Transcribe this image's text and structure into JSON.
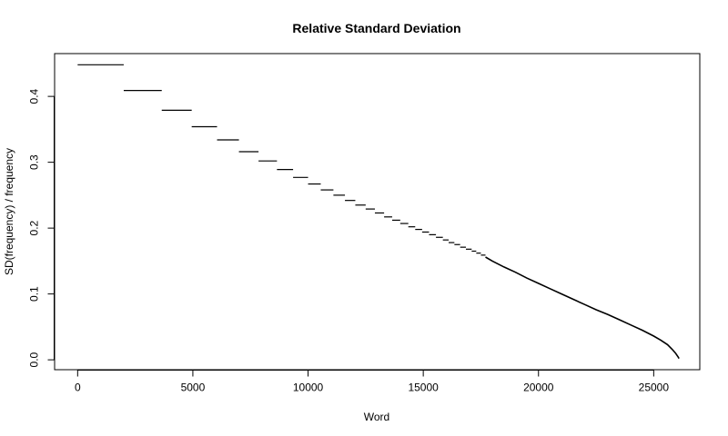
{
  "chart_data": {
    "type": "line",
    "title": "Relative Standard Deviation",
    "xlabel": "Word",
    "ylabel": "SD(frequency) / frequency",
    "xlim": [
      -1000,
      27000
    ],
    "ylim": [
      -0.015,
      0.465
    ],
    "x_ticks": [
      0,
      5000,
      10000,
      15000,
      20000,
      25000
    ],
    "x_tick_labels": [
      "0",
      "5000",
      "10000",
      "15000",
      "20000",
      "25000"
    ],
    "y_ticks": [
      0.0,
      0.1,
      0.2,
      0.3,
      0.4
    ],
    "y_tick_labels": [
      "0.0",
      "0.1",
      "0.2",
      "0.3",
      "0.4"
    ],
    "grid": false,
    "legend": "none",
    "series": [
      {
        "segments": [
          {
            "x": [
              0,
              2000
            ],
            "y": [
              0.448,
              0.448
            ]
          },
          {
            "x": [
              2000,
              3650
            ],
            "y": [
              0.409,
              0.409
            ]
          },
          {
            "x": [
              3650,
              4950
            ],
            "y": [
              0.379,
              0.379
            ]
          },
          {
            "x": [
              4950,
              6050
            ],
            "y": [
              0.354,
              0.354
            ]
          },
          {
            "x": [
              6050,
              7000
            ],
            "y": [
              0.334,
              0.334
            ]
          },
          {
            "x": [
              7000,
              7850
            ],
            "y": [
              0.316,
              0.316
            ]
          },
          {
            "x": [
              7850,
              8650
            ],
            "y": [
              0.302,
              0.302
            ]
          },
          {
            "x": [
              8650,
              9350
            ],
            "y": [
              0.289,
              0.289
            ]
          },
          {
            "x": [
              9350,
              10000
            ],
            "y": [
              0.277,
              0.277
            ]
          },
          {
            "x": [
              10000,
              10550
            ],
            "y": [
              0.267,
              0.267
            ]
          },
          {
            "x": [
              10550,
              11100
            ],
            "y": [
              0.258,
              0.258
            ]
          },
          {
            "x": [
              11100,
              11600
            ],
            "y": [
              0.25,
              0.25
            ]
          },
          {
            "x": [
              11600,
              12050
            ],
            "y": [
              0.242,
              0.242
            ]
          },
          {
            "x": [
              12050,
              12500
            ],
            "y": [
              0.235,
              0.235
            ]
          },
          {
            "x": [
              12500,
              12900
            ],
            "y": [
              0.229,
              0.229
            ]
          },
          {
            "x": [
              12900,
              13300
            ],
            "y": [
              0.223,
              0.223
            ]
          },
          {
            "x": [
              13300,
              13650
            ],
            "y": [
              0.217,
              0.217
            ]
          },
          {
            "x": [
              13650,
              14000
            ],
            "y": [
              0.212,
              0.212
            ]
          },
          {
            "x": [
              14000,
              14350
            ],
            "y": [
              0.207,
              0.207
            ]
          },
          {
            "x": [
              14350,
              14650
            ],
            "y": [
              0.202,
              0.202
            ]
          },
          {
            "x": [
              14650,
              14950
            ],
            "y": [
              0.198,
              0.198
            ]
          },
          {
            "x": [
              14950,
              15250
            ],
            "y": [
              0.194,
              0.194
            ]
          },
          {
            "x": [
              15250,
              15550
            ],
            "y": [
              0.19,
              0.19
            ]
          },
          {
            "x": [
              15550,
              15850
            ],
            "y": [
              0.186,
              0.186
            ]
          },
          {
            "x": [
              15850,
              16100
            ],
            "y": [
              0.182,
              0.182
            ]
          },
          {
            "x": [
              16100,
              16350
            ],
            "y": [
              0.178,
              0.178
            ]
          },
          {
            "x": [
              16350,
              16600
            ],
            "y": [
              0.175,
              0.175
            ]
          },
          {
            "x": [
              16600,
              16850
            ],
            "y": [
              0.171,
              0.171
            ]
          },
          {
            "x": [
              16850,
              17100
            ],
            "y": [
              0.168,
              0.168
            ]
          },
          {
            "x": [
              17100,
              17300
            ],
            "y": [
              0.165,
              0.165
            ]
          },
          {
            "x": [
              17300,
              17500
            ],
            "y": [
              0.162,
              0.162
            ]
          },
          {
            "x": [
              17500,
              17700
            ],
            "y": [
              0.159,
              0.159
            ]
          }
        ],
        "curve": {
          "x": [
            17700,
            18000,
            18500,
            19000,
            19500,
            20000,
            20500,
            21000,
            21500,
            22000,
            22500,
            23000,
            23500,
            24000,
            24500,
            25000,
            25300,
            25600,
            25800,
            25950,
            26050,
            26100
          ],
          "y": [
            0.156,
            0.15,
            0.141,
            0.133,
            0.124,
            0.116,
            0.108,
            0.1,
            0.092,
            0.084,
            0.076,
            0.069,
            0.061,
            0.053,
            0.045,
            0.036,
            0.03,
            0.023,
            0.016,
            0.01,
            0.005,
            0.002
          ]
        }
      }
    ]
  }
}
